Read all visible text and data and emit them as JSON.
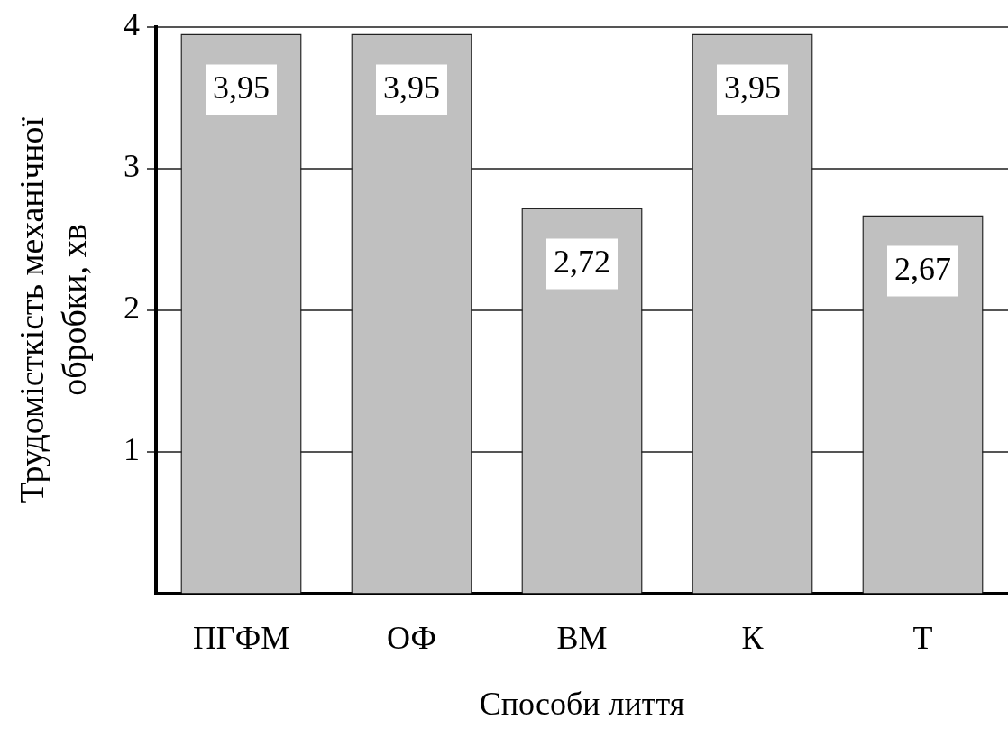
{
  "chart_data": {
    "type": "bar",
    "xlabel": "Способи лиття",
    "ylabel": "Трудомісткість механічної\nобробки, хв",
    "categories": [
      "ПГФМ",
      "ОФ",
      "ВМ",
      "К",
      "Т"
    ],
    "values": [
      3.95,
      3.95,
      2.72,
      3.95,
      2.67
    ],
    "value_labels": [
      "3,95",
      "3,95",
      "2,72",
      "3,95",
      "2,67"
    ],
    "color": "#c0c0c0",
    "ylim": [
      0,
      4
    ],
    "yticks": [
      1,
      2,
      3,
      4
    ],
    "grid": "y",
    "legend": false
  }
}
